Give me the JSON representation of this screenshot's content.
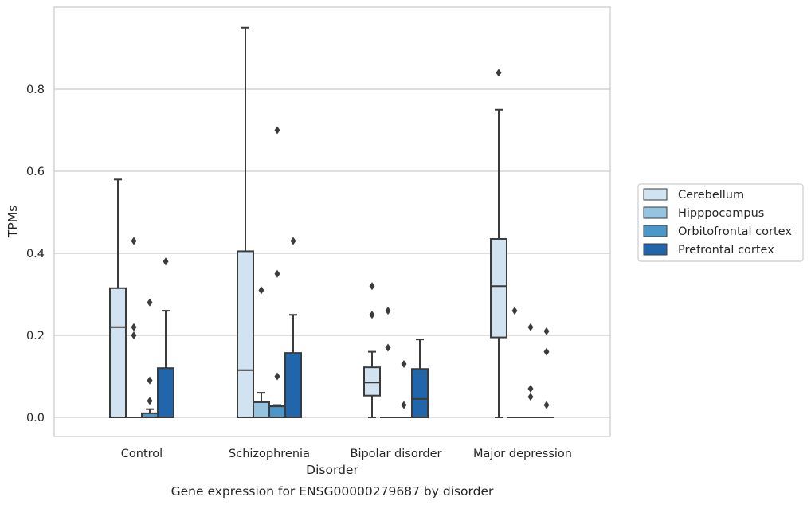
{
  "chart_data": {
    "type": "box",
    "title": "",
    "caption": "Gene expression for ENSG00000279687 by disorder",
    "xlabel": "Disorder",
    "ylabel": "TPMs",
    "ylim": [
      -0.045,
      0.99
    ],
    "yticks": [
      "0.0",
      "0.2",
      "0.4",
      "0.6",
      "0.8"
    ],
    "yticks_values": [
      0.0,
      0.2,
      0.4,
      0.6,
      0.8
    ],
    "grid": "horizontal",
    "legend_position": "right",
    "categories": [
      "Control",
      "Schizophrenia",
      "Bipolar disorder",
      "Major depression"
    ],
    "series": [
      {
        "name": "Cerebellum",
        "color": "#d1e2f1",
        "boxes": [
          {
            "category": "Control",
            "whisker_low": 0.0,
            "q1": 0.0,
            "median": 0.22,
            "q3": 0.315,
            "whisker_high": 0.58,
            "outliers": []
          },
          {
            "category": "Schizophrenia",
            "whisker_low": 0.0,
            "q1": 0.0,
            "median": 0.115,
            "q3": 0.405,
            "whisker_high": 0.95,
            "outliers": []
          },
          {
            "category": "Bipolar disorder",
            "whisker_low": 0.0,
            "q1": 0.053,
            "median": 0.085,
            "q3": 0.122,
            "whisker_high": 0.16,
            "outliers": [
              0.25,
              0.32
            ]
          },
          {
            "category": "Major depression",
            "whisker_low": 0.0,
            "q1": 0.195,
            "median": 0.32,
            "q3": 0.435,
            "whisker_high": 0.75,
            "outliers": [
              0.84
            ]
          }
        ]
      },
      {
        "name": "Hipppocampus",
        "color": "#94c4df",
        "boxes": [
          {
            "category": "Control",
            "whisker_low": 0.0,
            "q1": 0.0,
            "median": 0.0,
            "q3": 0.0,
            "whisker_high": 0.0,
            "outliers": [
              0.2,
              0.22,
              0.43
            ]
          },
          {
            "category": "Schizophrenia",
            "whisker_low": 0.0,
            "q1": 0.0,
            "median": 0.0,
            "q3": 0.037,
            "whisker_high": 0.06,
            "outliers": [
              0.31
            ]
          },
          {
            "category": "Bipolar disorder",
            "whisker_low": 0.0,
            "q1": 0.0,
            "median": 0.0,
            "q3": 0.0,
            "whisker_high": 0.0,
            "outliers": [
              0.17,
              0.26
            ]
          },
          {
            "category": "Major depression",
            "whisker_low": 0.0,
            "q1": 0.0,
            "median": 0.0,
            "q3": 0.0,
            "whisker_high": 0.0,
            "outliers": [
              0.26
            ]
          }
        ]
      },
      {
        "name": "Orbitofrontal cortex",
        "color": "#4a98c9",
        "boxes": [
          {
            "category": "Control",
            "whisker_low": 0.0,
            "q1": 0.0,
            "median": 0.0,
            "q3": 0.01,
            "whisker_high": 0.02,
            "outliers": [
              0.04,
              0.09,
              0.28
            ]
          },
          {
            "category": "Schizophrenia",
            "whisker_low": 0.0,
            "q1": 0.0,
            "median": 0.027,
            "q3": 0.028,
            "whisker_high": 0.03,
            "outliers": [
              0.1,
              0.35,
              0.7
            ]
          },
          {
            "category": "Bipolar disorder",
            "whisker_low": 0.0,
            "q1": 0.0,
            "median": 0.0,
            "q3": 0.0,
            "whisker_high": 0.0,
            "outliers": [
              0.03,
              0.13
            ]
          },
          {
            "category": "Major depression",
            "whisker_low": 0.0,
            "q1": 0.0,
            "median": 0.0,
            "q3": 0.0,
            "whisker_high": 0.0,
            "outliers": [
              0.05,
              0.07,
              0.22
            ]
          }
        ]
      },
      {
        "name": "Prefrontal cortex",
        "color": "#2165ab",
        "boxes": [
          {
            "category": "Control",
            "whisker_low": 0.0,
            "q1": 0.0,
            "median": 0.0,
            "q3": 0.12,
            "whisker_high": 0.26,
            "outliers": [
              0.38
            ]
          },
          {
            "category": "Schizophrenia",
            "whisker_low": 0.0,
            "q1": 0.0,
            "median": 0.0,
            "q3": 0.157,
            "whisker_high": 0.25,
            "outliers": [
              0.43
            ]
          },
          {
            "category": "Bipolar disorder",
            "whisker_low": 0.0,
            "q1": 0.0,
            "median": 0.045,
            "q3": 0.118,
            "whisker_high": 0.19,
            "outliers": []
          },
          {
            "category": "Major depression",
            "whisker_low": 0.0,
            "q1": 0.0,
            "median": 0.0,
            "q3": 0.0,
            "whisker_high": 0.0,
            "outliers": [
              0.03,
              0.16,
              0.21
            ]
          }
        ]
      }
    ]
  }
}
